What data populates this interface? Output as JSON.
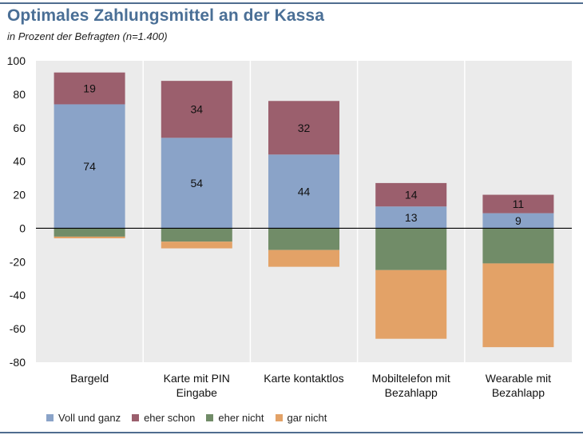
{
  "header": {
    "title": "Optimales Zahlungsmittel an der Kassa",
    "subtitle": "in Prozent der Befragten (n=1.400)"
  },
  "chart_data": {
    "type": "bar",
    "stacked": true,
    "categories": [
      [
        "Bargeld"
      ],
      [
        "Karte mit PIN",
        "Eingabe"
      ],
      [
        "Karte kontaktlos"
      ],
      [
        "Mobiltelefon mit",
        "Bezahlapp"
      ],
      [
        "Wearable mit",
        "Bezahlapp"
      ]
    ],
    "series": [
      {
        "name": "Voll und ganz",
        "color": "#8aa3c8",
        "values": [
          74,
          54,
          44,
          13,
          9
        ]
      },
      {
        "name": "eher schon",
        "color": "#9b5f6d",
        "values": [
          19,
          34,
          32,
          14,
          11
        ]
      },
      {
        "name": "eher nicht",
        "color": "#718c68",
        "values": [
          -5,
          -8,
          -13,
          -25,
          -21
        ]
      },
      {
        "name": "gar nicht",
        "color": "#e3a267",
        "values": [
          -1,
          -4,
          -10,
          -41,
          -50
        ]
      }
    ],
    "data_labels": [
      {
        "series": 0,
        "values": [
          "74",
          "54",
          "44",
          "13",
          "9"
        ]
      },
      {
        "series": 1,
        "values": [
          "19",
          "34",
          "32",
          "14",
          "11"
        ]
      }
    ],
    "ylim": [
      -80,
      100
    ],
    "yticks": [
      100,
      80,
      60,
      40,
      20,
      0,
      -20,
      -40,
      -60,
      -80
    ],
    "grid": "vertical separators",
    "legend": "bottom",
    "plot_background": "#ebebeb"
  }
}
